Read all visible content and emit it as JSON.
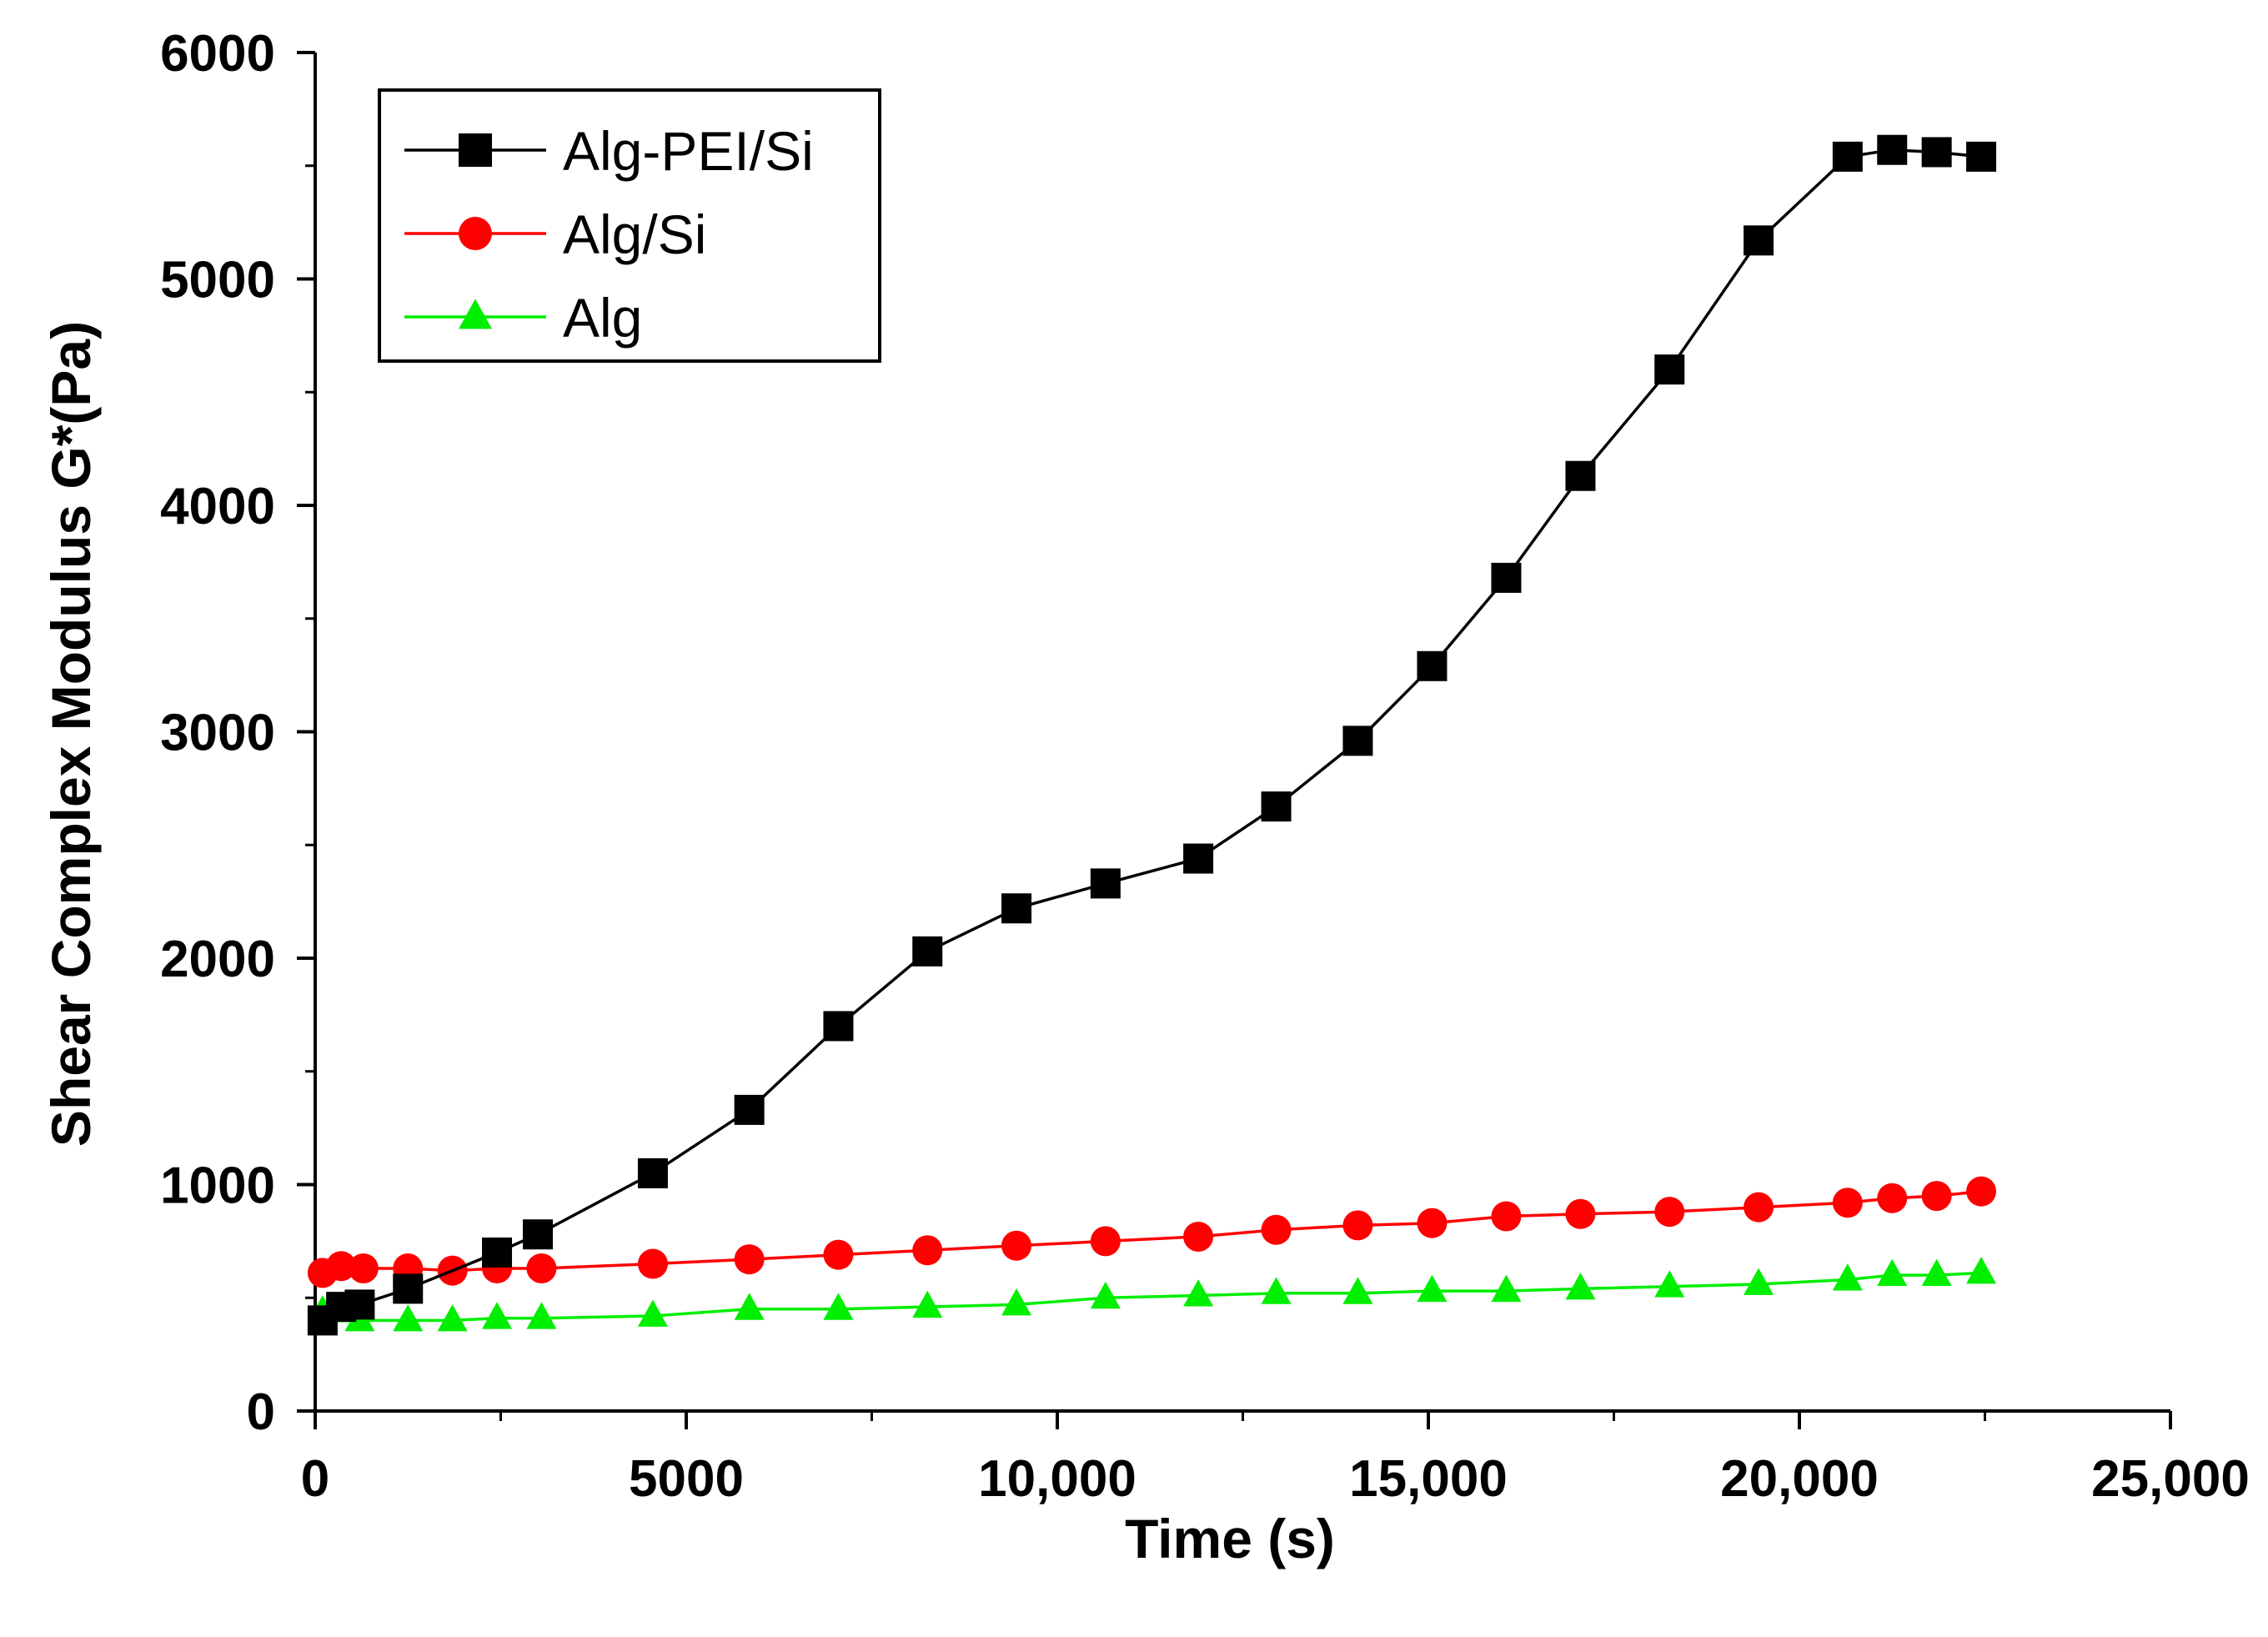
{
  "chart_data": {
    "type": "line",
    "title": "",
    "xlabel": "Time (s)",
    "ylabel": "Shear Complex Modulus G*(Pa)",
    "xlim": [
      0,
      25000
    ],
    "ylim": [
      0,
      6000
    ],
    "x_ticks": [
      0,
      5000,
      10000,
      15000,
      20000,
      25000
    ],
    "x_tick_labels": [
      "0",
      "5000",
      "10,000",
      "15,000",
      "20,000",
      "25,000"
    ],
    "y_ticks": [
      0,
      1000,
      2000,
      3000,
      4000,
      5000,
      6000
    ],
    "y_tick_labels": [
      "0",
      "1000",
      "2000",
      "3000",
      "4000",
      "5000",
      "6000"
    ],
    "grid": false,
    "legend_position": "top-left",
    "series": [
      {
        "name": "Alg-PEI/Si",
        "color": "#000000",
        "marker": "square",
        "x": [
          100,
          350,
          600,
          1250,
          2450,
          3000,
          4550,
          5850,
          7050,
          8250,
          9450,
          10650,
          11900,
          12950,
          14050,
          15050,
          16050,
          17050,
          18250,
          19450,
          20650,
          21250,
          21850,
          22450
        ],
        "y": [
          400,
          460,
          470,
          540,
          700,
          780,
          1050,
          1330,
          1700,
          2030,
          2220,
          2330,
          2440,
          2670,
          2960,
          3290,
          3680,
          4130,
          4600,
          5170,
          5540,
          5570,
          5560,
          5540
        ]
      },
      {
        "name": "Alg/Si",
        "color": "#ff0000",
        "marker": "circle",
        "x": [
          100,
          350,
          650,
          1250,
          1850,
          2450,
          3050,
          4550,
          5850,
          7050,
          8250,
          9450,
          10650,
          11900,
          12950,
          14050,
          15050,
          16050,
          17050,
          18250,
          19450,
          20650,
          21250,
          21850,
          22450
        ],
        "y": [
          610,
          640,
          630,
          630,
          620,
          630,
          630,
          650,
          670,
          690,
          710,
          730,
          750,
          770,
          800,
          820,
          830,
          860,
          870,
          880,
          900,
          920,
          940,
          950,
          970
        ]
      },
      {
        "name": "Alg",
        "color": "#00ee00",
        "marker": "triangle",
        "x": [
          100,
          350,
          600,
          1250,
          1850,
          2450,
          3050,
          4550,
          5850,
          7050,
          8250,
          9450,
          10650,
          11900,
          12950,
          14050,
          15050,
          16050,
          17050,
          18250,
          19450,
          20650,
          21250,
          21850,
          22450
        ],
        "y": [
          440,
          440,
          400,
          400,
          400,
          410,
          410,
          420,
          450,
          450,
          460,
          470,
          500,
          510,
          520,
          520,
          530,
          530,
          540,
          550,
          560,
          580,
          600,
          600,
          610
        ]
      }
    ]
  }
}
